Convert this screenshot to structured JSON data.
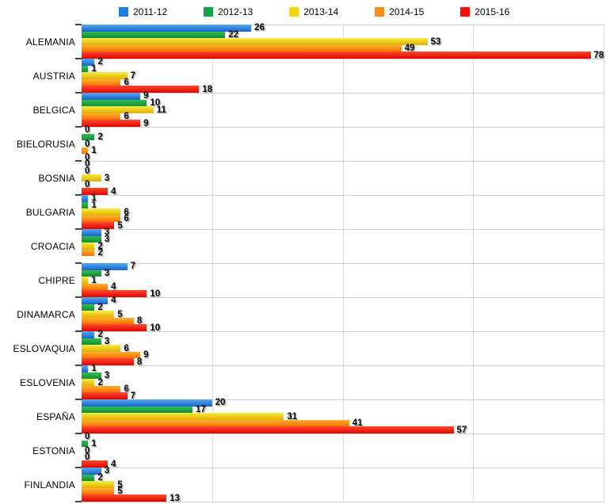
{
  "chart_data": {
    "type": "bar",
    "orientation": "horizontal",
    "title": "",
    "xlabel": "",
    "ylabel": "",
    "xlim": [
      0,
      80
    ],
    "gridline_values": [
      20,
      40,
      60,
      80
    ],
    "grid": true,
    "legend_position": "top",
    "categories": [
      "ALEMANIA",
      "AUSTRIA",
      "BELGICA",
      "BIELORUSIA",
      "BOSNIA",
      "BULGARIA",
      "CROACIA",
      "CHIPRE",
      "DINAMARCA",
      "ESLOVAQUIA",
      "ESLOVENIA",
      "ESPAÑA",
      "ESTONIA",
      "FINLANDIA"
    ],
    "series": [
      {
        "name": "2011-12",
        "legend_color": "#1b7fe3",
        "gradient": [
          "#57a8ee",
          "#1565cd"
        ],
        "values": [
          26,
          2,
          9,
          0,
          0,
          1,
          3,
          7,
          4,
          2,
          1,
          20,
          0,
          3
        ],
        "no_label_indices": []
      },
      {
        "name": "2012-13",
        "legend_color": "#12a24b",
        "gradient": [
          "#3abb50",
          "#0b8f38"
        ],
        "values": [
          22,
          1,
          10,
          2,
          0,
          1,
          3,
          3,
          2,
          3,
          3,
          17,
          1,
          2
        ],
        "no_label_indices": []
      },
      {
        "name": "2013-14",
        "legend_color": "#f1d800",
        "gradient": [
          "#f7ec42",
          "#e2ae00"
        ],
        "values": [
          53,
          7,
          11,
          0,
          3,
          6,
          2,
          1,
          5,
          6,
          2,
          31,
          0,
          5
        ],
        "no_label_indices": []
      },
      {
        "name": "2014-15",
        "legend_color": "#ff8d1a",
        "gradient": [
          "#ffb02e",
          "#f56f00"
        ],
        "values": [
          49,
          6,
          6,
          1,
          0,
          6,
          2,
          4,
          8,
          9,
          6,
          41,
          0,
          5
        ],
        "no_label_indices": []
      },
      {
        "name": "2015-16",
        "legend_color": "#fb0d0c",
        "gradient": [
          "#ff4a2e",
          "#df0400"
        ],
        "values": [
          78,
          18,
          9,
          0,
          4,
          5,
          0,
          10,
          10,
          8,
          7,
          57,
          4,
          13
        ],
        "no_label_indices": [
          6
        ]
      }
    ]
  },
  "layout_colors": {
    "gridline": "#d9d9d9",
    "row_separator": "#cfcfcf",
    "tick": "#444444",
    "background": "#ffffff"
  }
}
